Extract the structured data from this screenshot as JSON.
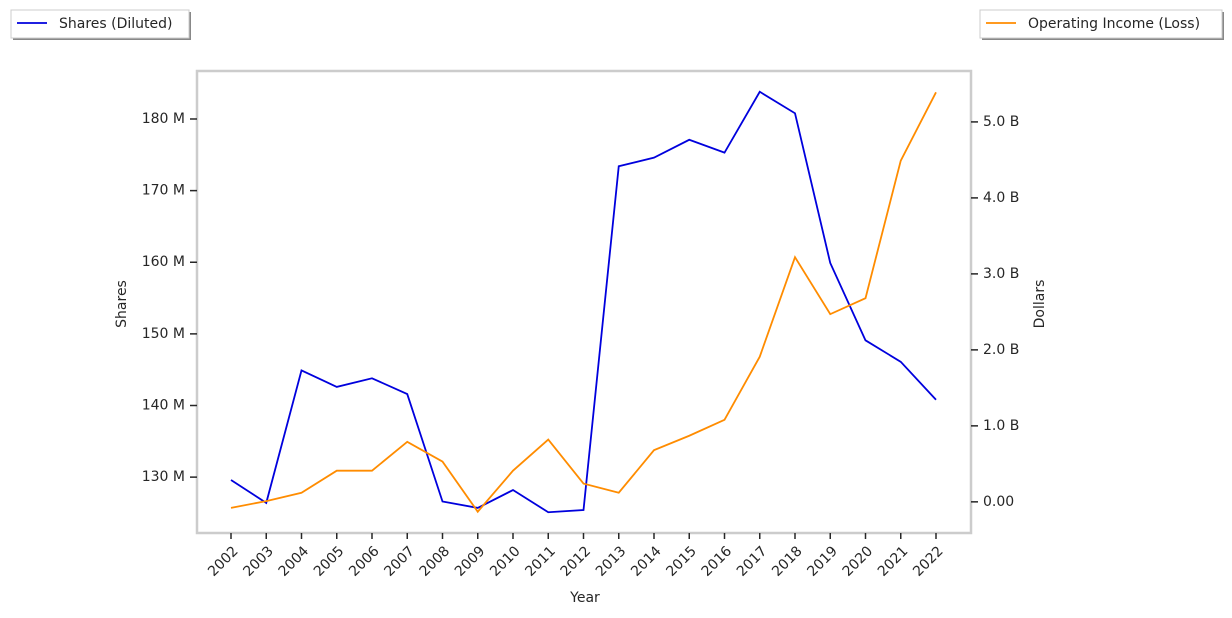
{
  "chart_data": {
    "type": "line",
    "xlabel": "Year",
    "ylabel": "Shares",
    "y2label": "Dollars",
    "categories": [
      "2002",
      "2003",
      "2004",
      "2005",
      "2006",
      "2007",
      "2008",
      "2009",
      "2010",
      "2011",
      "2012",
      "2013",
      "2014",
      "2015",
      "2016",
      "2017",
      "2018",
      "2019",
      "2020",
      "2021",
      "2022"
    ],
    "series": [
      {
        "name": "Shares (Diluted)",
        "color": "#0000dd",
        "axis": "y",
        "values": [
          129600000,
          126400000,
          144900000,
          142600000,
          143800000,
          141600000,
          126600000,
          125700000,
          128200000,
          125100000,
          125400000,
          173400000,
          174600000,
          177100000,
          175300000,
          183800000,
          180800000,
          159900000,
          149100000,
          146100000,
          140800000
        ]
      },
      {
        "name": "Operating Income (Loss)",
        "color": "#ff8c00",
        "axis": "y2",
        "values": [
          -80000000,
          10000000,
          120000000,
          410000000,
          410000000,
          790000000,
          530000000,
          -130000000,
          410000000,
          820000000,
          240000000,
          120000000,
          680000000,
          870000000,
          1080000000,
          1910000000,
          3220000000,
          2470000000,
          2680000000,
          4490000000,
          5390000000
        ]
      }
    ],
    "ylim": [
      122200000,
      186700000
    ],
    "yticks": [
      {
        "value": 130000000,
        "label": "130 M"
      },
      {
        "value": 140000000,
        "label": "140 M"
      },
      {
        "value": 150000000,
        "label": "150 M"
      },
      {
        "value": 160000000,
        "label": "160 M"
      },
      {
        "value": 170000000,
        "label": "170 M"
      },
      {
        "value": 180000000,
        "label": "180 M"
      }
    ],
    "y2lim": [
      -410000000,
      5670000000
    ],
    "y2ticks": [
      {
        "value": 0,
        "label": "0.00"
      },
      {
        "value": 1000000000,
        "label": "1.0 B"
      },
      {
        "value": 2000000000,
        "label": "2.0 B"
      },
      {
        "value": 3000000000,
        "label": "3.0 B"
      },
      {
        "value": 4000000000,
        "label": "4.0 B"
      },
      {
        "value": 5000000000,
        "label": "5.0 B"
      }
    ]
  }
}
